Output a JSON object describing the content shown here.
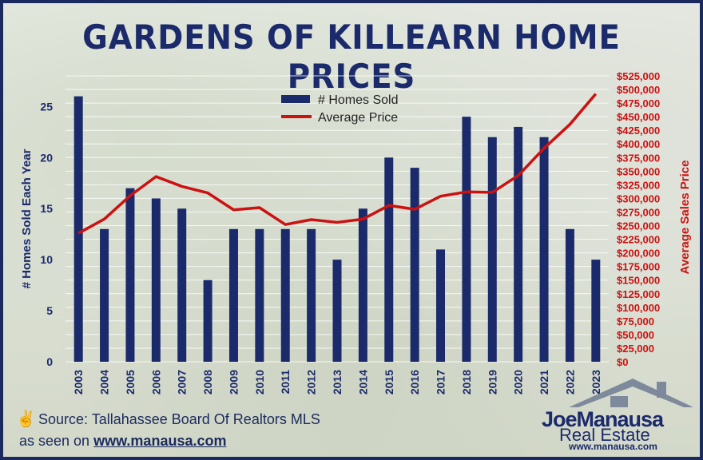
{
  "title": "GARDENS OF KILLEARN HOME PRICES",
  "source_text": "Source: Tallahassee Board Of Realtors MLS",
  "seen_on_prefix": "as seen on",
  "seen_on_url": "www.manausa.com",
  "logo": {
    "name": "JoeManausa",
    "tagline": "Real Estate",
    "url": "www.manausa.com"
  },
  "colors": {
    "bars": "#1b2a6b",
    "line": "#cc1111",
    "title": "#1b2a6b"
  },
  "chart_data": {
    "type": "bar",
    "categories": [
      "2003",
      "2004",
      "2005",
      "2006",
      "2007",
      "2008",
      "2009",
      "2010",
      "2011",
      "2012",
      "2013",
      "2014",
      "2015",
      "2016",
      "2017",
      "2018",
      "2019",
      "2020",
      "2021",
      "2022",
      "2023"
    ],
    "series": [
      {
        "name": "# Homes Sold",
        "type": "bar",
        "axis": "left",
        "values": [
          26,
          13,
          17,
          16,
          15,
          8,
          13,
          13,
          13,
          13,
          10,
          15,
          20,
          19,
          11,
          24,
          22,
          23,
          22,
          13,
          10
        ]
      },
      {
        "name": "Average Price",
        "type": "line",
        "axis": "right",
        "values": [
          236000,
          262000,
          305000,
          340000,
          322000,
          310000,
          279000,
          283000,
          252000,
          261000,
          256000,
          262000,
          287000,
          280000,
          304000,
          312000,
          311000,
          342000,
          392000,
          436000,
          492000
        ]
      }
    ],
    "ylabel": "# Homes Sold Each Year",
    "ylabel_right": "Average Sales Price",
    "ylim": [
      0,
      28
    ],
    "yticks": [
      0,
      5,
      10,
      15,
      20,
      25
    ],
    "ylim_right": [
      0,
      525000
    ],
    "yticks_right": [
      "$0",
      "$25,000",
      "$50,000",
      "$75,000",
      "$100,000",
      "$125,000",
      "$150,000",
      "$175,000",
      "$200,000",
      "$225,000",
      "$250,000",
      "$275,000",
      "$300,000",
      "$325,000",
      "$350,000",
      "$375,000",
      "$400,000",
      "$425,000",
      "$450,000",
      "$475,000",
      "$500,000",
      "$525,000"
    ],
    "grid": true,
    "legend": "top-center"
  }
}
